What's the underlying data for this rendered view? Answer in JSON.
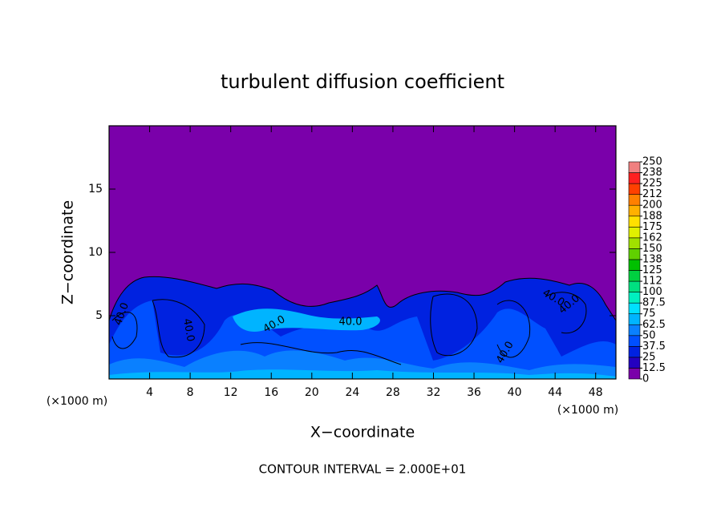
{
  "chart_data": {
    "type": "contour",
    "title": "turbulent diffusion coefficient",
    "x_label": "X−coordinate",
    "y_label": "Z−coordinate",
    "x_unit_label": "(×1000 m)",
    "x_unit_label_right": "(×1000 m)",
    "footer": "CONTOUR INTERVAL = 2.000E+01",
    "xlim": [
      0,
      50
    ],
    "ylim": [
      0,
      20
    ],
    "xticks": [
      4,
      8,
      12,
      16,
      20,
      24,
      28,
      32,
      36,
      40,
      44,
      48
    ],
    "yticks": [
      5,
      10,
      15
    ],
    "contour_labels": [
      "40.0",
      "40.0",
      "40.0",
      "40.0",
      "40.0",
      "40.0",
      "40.0"
    ],
    "colorbar_levels": [
      0,
      12.5,
      25,
      37.5,
      50,
      62.5,
      75,
      87.5,
      100,
      {
        "value": 112.5,
        "label": "112"
      },
      125,
      {
        "value": 137.5,
        "label": "138"
      },
      150,
      {
        "value": 162.5,
        "label": "162"
      },
      175,
      {
        "value": 187.5,
        "label": "188"
      },
      200,
      {
        "value": 212.5,
        "label": "212"
      },
      225,
      {
        "value": 237.5,
        "label": "238"
      },
      250
    ],
    "colors": [
      "#7a00aa",
      "#2400c0",
      "#0022e0",
      "#0050ff",
      "#0a80ff",
      "#00b4ff",
      "#00e0ff",
      "#00f0c0",
      "#00e080",
      "#00d040",
      "#00c000",
      "#60d000",
      "#a0e000",
      "#e0f000",
      "#ffe000",
      "#ffb000",
      "#ff8000",
      "#ff4000",
      "#ff2020",
      "#f08080"
    ]
  }
}
